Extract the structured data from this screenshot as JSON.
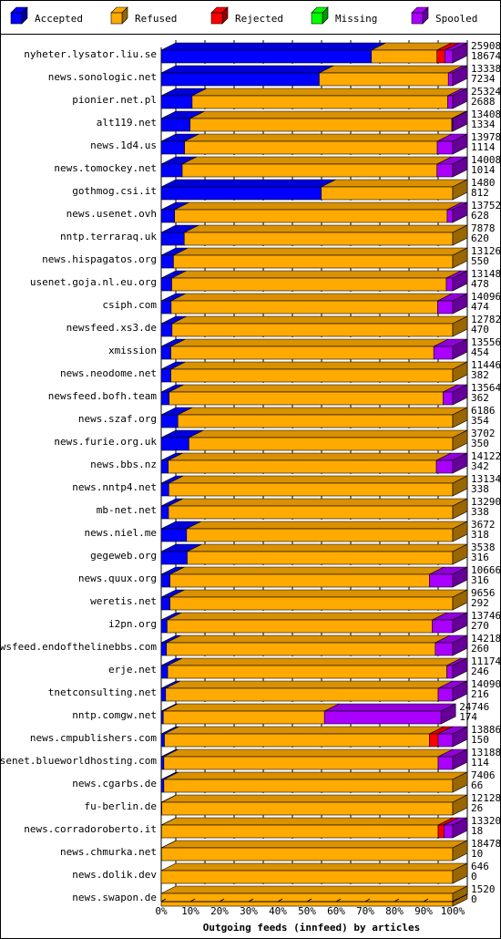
{
  "chart_data": {
    "type": "bar",
    "stacked": true,
    "orientation": "horizontal",
    "title": "Outgoing feeds (innfeed) by articles",
    "xlim": [
      0,
      100
    ],
    "x_unit": "%",
    "xticks": [
      "0%",
      "10%",
      "20%",
      "30%",
      "40%",
      "50%",
      "60%",
      "70%",
      "80%",
      "90%",
      "100%"
    ],
    "legend_position": "top",
    "legend": [
      {
        "name": "Accepted",
        "color": "#0000ff"
      },
      {
        "name": "Refused",
        "color": "#ffaa00"
      },
      {
        "name": "Rejected",
        "color": "#ff0000"
      },
      {
        "name": "Missing",
        "color": "#00ff00"
      },
      {
        "name": "Spooled",
        "color": "#aa00ff"
      }
    ],
    "grid": true,
    "rows": [
      {
        "label": "nyheter.lysator.liu.se",
        "offered": "25908",
        "accepted_count": "18674",
        "values": [
          72.1,
          22.5,
          2.7,
          0,
          2.7
        ]
      },
      {
        "label": "news.sonologic.net",
        "offered": "13338",
        "accepted_count": "7234",
        "values": [
          54.2,
          44.3,
          0,
          0,
          1.5
        ]
      },
      {
        "label": "pionier.net.pl",
        "offered": "25324",
        "accepted_count": "2688",
        "values": [
          10.6,
          87.7,
          0,
          0,
          1.7
        ]
      },
      {
        "label": "alt119.net",
        "offered": "13408",
        "accepted_count": "1334",
        "values": [
          9.9,
          89.8,
          0,
          0,
          0.3
        ]
      },
      {
        "label": "news.1d4.us",
        "offered": "13978",
        "accepted_count": "1114",
        "values": [
          8.0,
          86.7,
          0,
          0,
          5.3
        ]
      },
      {
        "label": "news.tomockey.net",
        "offered": "14008",
        "accepted_count": "1014",
        "values": [
          7.2,
          87.4,
          0,
          0,
          5.4
        ]
      },
      {
        "label": "gothmog.csi.it",
        "offered": "1480",
        "accepted_count": "812",
        "values": [
          54.9,
          45.1,
          0,
          0,
          0
        ]
      },
      {
        "label": "news.usenet.ovh",
        "offered": "13752",
        "accepted_count": "628",
        "values": [
          4.6,
          93.5,
          0,
          0,
          1.9
        ]
      },
      {
        "label": "nntp.terraraq.uk",
        "offered": "7878",
        "accepted_count": "620",
        "values": [
          7.9,
          92.1,
          0,
          0,
          0
        ]
      },
      {
        "label": "news.hispagatos.org",
        "offered": "13126",
        "accepted_count": "550",
        "values": [
          4.2,
          95.8,
          0,
          0,
          0
        ]
      },
      {
        "label": "usenet.goja.nl.eu.org",
        "offered": "13148",
        "accepted_count": "478",
        "values": [
          3.6,
          94.2,
          0,
          0,
          2.2
        ]
      },
      {
        "label": "csiph.com",
        "offered": "14096",
        "accepted_count": "474",
        "values": [
          3.4,
          91.4,
          0,
          0,
          5.2
        ]
      },
      {
        "label": "newsfeed.xs3.de",
        "offered": "12782",
        "accepted_count": "470",
        "values": [
          3.7,
          96.3,
          0,
          0,
          0
        ]
      },
      {
        "label": "xmission",
        "offered": "13556",
        "accepted_count": "454",
        "values": [
          3.3,
          90.2,
          0,
          0,
          6.5
        ]
      },
      {
        "label": "news.neodome.net",
        "offered": "11446",
        "accepted_count": "382",
        "values": [
          3.3,
          96.7,
          0,
          0,
          0
        ]
      },
      {
        "label": "newsfeed.bofh.team",
        "offered": "13564",
        "accepted_count": "362",
        "values": [
          2.7,
          94.0,
          0,
          0,
          3.3
        ]
      },
      {
        "label": "news.szaf.org",
        "offered": "6186",
        "accepted_count": "354",
        "values": [
          5.7,
          94.3,
          0,
          0,
          0
        ]
      },
      {
        "label": "news.furie.org.uk",
        "offered": "3702",
        "accepted_count": "350",
        "values": [
          9.5,
          90.5,
          0,
          0,
          0
        ]
      },
      {
        "label": "news.bbs.nz",
        "offered": "14122",
        "accepted_count": "342",
        "values": [
          2.4,
          92.0,
          0,
          0,
          5.6
        ]
      },
      {
        "label": "news.nntp4.net",
        "offered": "13134",
        "accepted_count": "338",
        "values": [
          2.6,
          97.4,
          0,
          0,
          0
        ]
      },
      {
        "label": "mb-net.net",
        "offered": "13290",
        "accepted_count": "338",
        "values": [
          2.5,
          97.5,
          0,
          0,
          0
        ]
      },
      {
        "label": "news.niel.me",
        "offered": "3672",
        "accepted_count": "318",
        "values": [
          8.7,
          91.3,
          0,
          0,
          0
        ]
      },
      {
        "label": "gegeweb.org",
        "offered": "3538",
        "accepted_count": "316",
        "values": [
          8.9,
          91.1,
          0,
          0,
          0
        ]
      },
      {
        "label": "news.quux.org",
        "offered": "10666",
        "accepted_count": "316",
        "values": [
          3.0,
          89.0,
          0,
          0,
          8.0
        ]
      },
      {
        "label": "weretis.net",
        "offered": "9656",
        "accepted_count": "292",
        "values": [
          3.0,
          97.0,
          0,
          0,
          0
        ]
      },
      {
        "label": "i2pn.org",
        "offered": "13746",
        "accepted_count": "270",
        "values": [
          2.0,
          91.0,
          0,
          0,
          7.0
        ]
      },
      {
        "label": "newsfeed.endofthelinebbs.com",
        "offered": "14218",
        "accepted_count": "260",
        "values": [
          1.8,
          92.2,
          0,
          0,
          6.0
        ]
      },
      {
        "label": "erje.net",
        "offered": "11174",
        "accepted_count": "246",
        "values": [
          2.2,
          95.8,
          0,
          0,
          2.0
        ]
      },
      {
        "label": "tnetconsulting.net",
        "offered": "14090",
        "accepted_count": "216",
        "values": [
          1.5,
          93.5,
          0,
          0,
          5.0
        ]
      },
      {
        "label": "nntp.comgw.net",
        "offered": "24746",
        "accepted_count": "174",
        "values": [
          0.7,
          55.3,
          0,
          0,
          40.0
        ]
      },
      {
        "label": "news.cmpublishers.com",
        "offered": "13886",
        "accepted_count": "150",
        "values": [
          1.1,
          90.9,
          3.0,
          0,
          5.0
        ]
      },
      {
        "label": "usenet.blueworldhosting.com",
        "offered": "13188",
        "accepted_count": "114",
        "values": [
          0.9,
          94.1,
          0,
          0,
          5.0
        ]
      },
      {
        "label": "news.cgarbs.de",
        "offered": "7406",
        "accepted_count": "66",
        "values": [
          0.9,
          99.1,
          0,
          0,
          0
        ]
      },
      {
        "label": "fu-berlin.de",
        "offered": "12128",
        "accepted_count": "26",
        "values": [
          0.2,
          99.8,
          0,
          0,
          0
        ]
      },
      {
        "label": "news.corradoroberto.it",
        "offered": "13320",
        "accepted_count": "18",
        "values": [
          0.1,
          94.9,
          2.0,
          0,
          3.0
        ]
      },
      {
        "label": "news.chmurka.net",
        "offered": "18478",
        "accepted_count": "10",
        "values": [
          0.1,
          99.9,
          0,
          0,
          0
        ]
      },
      {
        "label": "news.dolik.dev",
        "offered": "646",
        "accepted_count": "0",
        "values": [
          0,
          100,
          0,
          0,
          0
        ]
      },
      {
        "label": "news.swapon.de",
        "offered": "1520",
        "accepted_count": "0",
        "values": [
          0,
          100,
          0,
          0,
          0
        ]
      }
    ]
  }
}
